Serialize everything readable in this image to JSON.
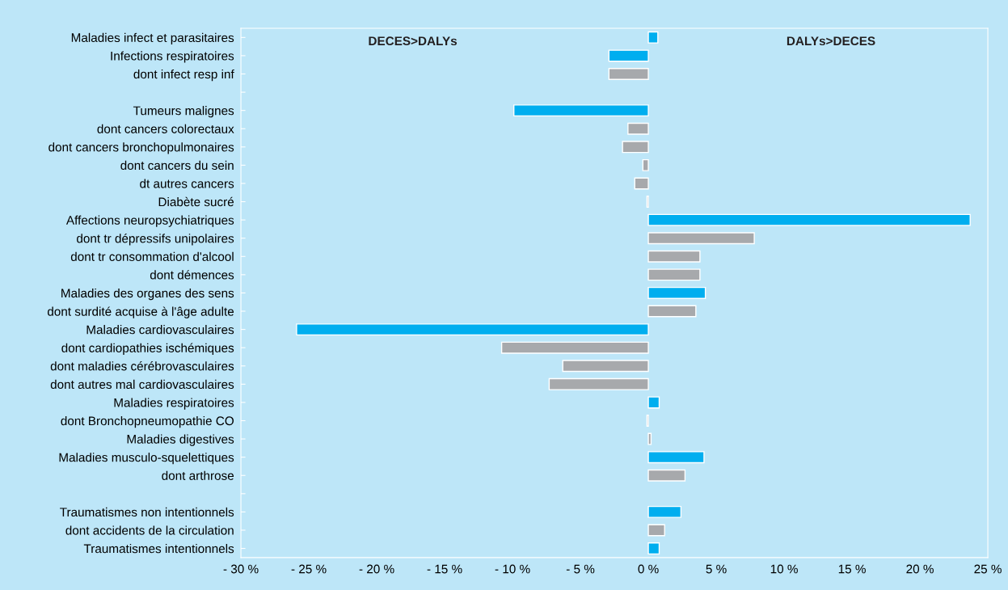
{
  "chart_data": {
    "type": "bar",
    "orientation": "horizontal",
    "categories": [
      "Maladies infect et parasitaires",
      "Infections respiratoires",
      "dont infect resp inf",
      null,
      "Tumeurs malignes",
      "dont cancers colorectaux",
      "dont cancers bronchopulmonaires",
      "dont cancers du sein",
      "dt autres cancers",
      "Diabète sucré",
      "Affections neuropsychiatriques",
      "dont tr dépressifs unipolaires",
      "dont tr consommation d'alcool",
      "dont démences",
      "Maladies des organes des sens",
      "dont surdité acquise à l'âge adulte",
      "Maladies cardiovasculaires",
      "dont cardiopathies ischémiques",
      "dont maladies cérébrovasculaires",
      "dont autres mal cardiovasculaires",
      "Maladies respiratoires",
      "dont Bronchopneumopathie CO",
      "Maladies digestives",
      "Maladies musculo-squelettiques",
      "dont arthrose",
      null,
      "Traumatismes non intentionnels",
      "dont accidents de la circulation",
      "Traumatismes intentionnels"
    ],
    "values": [
      0.7,
      -2.9,
      -2.9,
      null,
      -9.9,
      -1.5,
      -1.9,
      -0.4,
      -1.0,
      -0.1,
      23.7,
      7.8,
      3.8,
      3.8,
      4.2,
      3.5,
      -25.9,
      -10.8,
      -6.3,
      -7.3,
      0.8,
      -0.1,
      0.2,
      4.1,
      2.7,
      null,
      2.4,
      1.2,
      0.8
    ],
    "colors": [
      "#00aeef",
      "#00aeef",
      "#a7a9ac",
      null,
      "#00aeef",
      "#a7a9ac",
      "#a7a9ac",
      "#a7a9ac",
      "#a7a9ac",
      "#a7a9ac",
      "#00aeef",
      "#a7a9ac",
      "#a7a9ac",
      "#a7a9ac",
      "#00aeef",
      "#a7a9ac",
      "#00aeef",
      "#a7a9ac",
      "#a7a9ac",
      "#a7a9ac",
      "#00aeef",
      "#a7a9ac",
      "#a7a9ac",
      "#00aeef",
      "#a7a9ac",
      null,
      "#00aeef",
      "#a7a9ac",
      "#00aeef"
    ],
    "xlim": [
      -30,
      25
    ],
    "xticks": [
      {
        "value": -30,
        "label": "- 30 %"
      },
      {
        "value": -25,
        "label": "- 25 %"
      },
      {
        "value": -20,
        "label": "- 20 %"
      },
      {
        "value": -15,
        "label": "- 15 %"
      },
      {
        "value": -10,
        "label": "- 10 %"
      },
      {
        "value": -5,
        "label": "- 5 %"
      },
      {
        "value": 0,
        "label": "0 %"
      },
      {
        "value": 5,
        "label": "5 %"
      },
      {
        "value": 10,
        "label": "10 %"
      },
      {
        "value": 15,
        "label": "15 %"
      },
      {
        "value": 20,
        "label": "20 %"
      },
      {
        "value": 25,
        "label": "25 %"
      }
    ],
    "annotations": [
      "DECES>DALYs",
      "DALYs>DECES"
    ],
    "grid": false
  }
}
